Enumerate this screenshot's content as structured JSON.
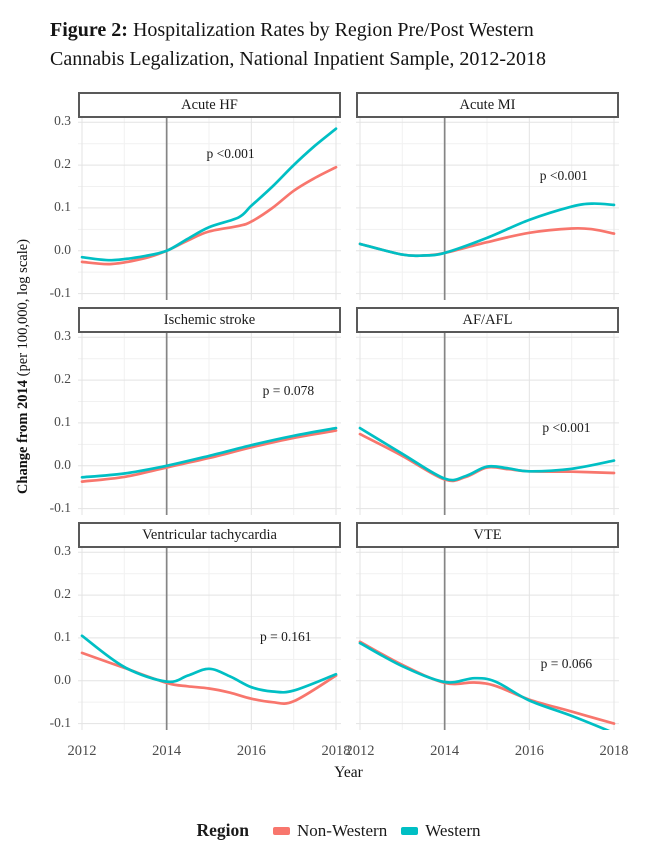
{
  "header": {
    "figure_label": "Figure 2:",
    "title_line1": "Hospitalization Rates by Region Pre/Post Western",
    "title_line2": "Cannabis Legalization, National Inpatient Sample, 2012-2018"
  },
  "chart_data": {
    "type": "line",
    "title": "Figure 2: Hospitalization Rates by Region Pre/Post Western Cannabis Legalization, National Inpatient Sample, 2012-2018",
    "xlabel": "Year",
    "ylabel_bold": "Change from 2014",
    "ylabel_rest": " (per 100,000, log scale)",
    "x_tick_labels": [
      "2012",
      "2014",
      "2016",
      "2018"
    ],
    "x_tick_values": [
      2012,
      2014,
      2016,
      2018
    ],
    "x_minor_values": [
      2013,
      2015,
      2017
    ],
    "y_tick_labels": [
      "0.3",
      "0.2",
      "0.1",
      "0.0",
      "-0.1"
    ],
    "y_tick_values": [
      0.3,
      0.2,
      0.1,
      0.0,
      -0.1
    ],
    "y_minor_values": [
      0.25,
      0.15,
      0.05,
      -0.05
    ],
    "xlim": [
      2011.9,
      2018.12
    ],
    "ylim": [
      -0.115,
      0.31
    ],
    "grid": true,
    "reference_line_x": 2014,
    "colors": {
      "non_western": "#F8766D",
      "western": "#00BFC4",
      "reference_line": "#858585",
      "grid_major": "#e3e3e3",
      "grid_minor": "#f1f1f1",
      "strip_border": "#595959"
    },
    "legend": {
      "title": "Region",
      "position": "bottom",
      "entries": [
        {
          "label": "Non-Western",
          "color": "#F8766D",
          "series_key": "non_western"
        },
        {
          "label": "Western",
          "color": "#00BFC4",
          "series_key": "western"
        }
      ]
    },
    "panels": [
      {
        "title": "Acute HF",
        "p_label": "p <0.001",
        "p_x": 0.58,
        "p_y": 0.2,
        "x": [
          2012,
          2012.7,
          2013.5,
          2014,
          2014.5,
          2015,
          2015.7,
          2016,
          2016.5,
          2017,
          2017.5,
          2018
        ],
        "western": [
          -0.015,
          -0.022,
          -0.012,
          0.0,
          0.028,
          0.055,
          0.078,
          0.105,
          0.15,
          0.2,
          0.245,
          0.285
        ],
        "non_western": [
          -0.026,
          -0.031,
          -0.017,
          0.0,
          0.024,
          0.045,
          0.058,
          0.068,
          0.1,
          0.14,
          0.17,
          0.195
        ]
      },
      {
        "title": "Acute MI",
        "p_label": "p <0.001",
        "p_x": 0.79,
        "p_y": 0.32,
        "x": [
          2012,
          2013,
          2013.5,
          2014,
          2015,
          2016,
          2017,
          2017.5,
          2018
        ],
        "western": [
          0.016,
          -0.009,
          -0.011,
          -0.005,
          0.03,
          0.072,
          0.103,
          0.11,
          0.107
        ],
        "non_western": [
          0.016,
          -0.009,
          -0.011,
          -0.005,
          0.02,
          0.042,
          0.052,
          0.05,
          0.04
        ]
      },
      {
        "title": "Ischemic stroke",
        "p_label": "p = 0.078",
        "p_x": 0.8,
        "p_y": 0.32,
        "x": [
          2012,
          2013,
          2014,
          2015,
          2016,
          2017,
          2018
        ],
        "western": [
          -0.027,
          -0.018,
          0.0,
          0.023,
          0.048,
          0.07,
          0.088
        ],
        "non_western": [
          -0.037,
          -0.026,
          -0.004,
          0.018,
          0.043,
          0.065,
          0.082
        ]
      },
      {
        "title": "AF/AFL",
        "p_label": "p <0.001",
        "p_x": 0.8,
        "p_y": 0.52,
        "x": [
          2012,
          2013,
          2014,
          2014.5,
          2015,
          2015.5,
          2016,
          2017,
          2018
        ],
        "western": [
          0.088,
          0.028,
          -0.03,
          -0.024,
          -0.002,
          -0.006,
          -0.013,
          -0.007,
          0.012
        ],
        "non_western": [
          0.074,
          0.023,
          -0.032,
          -0.026,
          -0.004,
          -0.008,
          -0.013,
          -0.014,
          -0.017
        ]
      },
      {
        "title": "Ventricular tachycardia",
        "p_label": "p = 0.161",
        "p_x": 0.79,
        "p_y": 0.49,
        "x": [
          2012,
          2013,
          2014,
          2014.5,
          2015,
          2015.5,
          2016,
          2016.5,
          2017,
          2018
        ],
        "western": [
          0.105,
          0.032,
          -0.002,
          0.012,
          0.028,
          0.01,
          -0.015,
          -0.025,
          -0.023,
          0.015
        ],
        "non_western": [
          0.065,
          0.03,
          -0.005,
          -0.013,
          -0.018,
          -0.028,
          -0.042,
          -0.05,
          -0.048,
          0.012
        ]
      },
      {
        "title": "VTE",
        "p_label": "p = 0.066",
        "p_x": 0.8,
        "p_y": 0.64,
        "x": [
          2012,
          2013,
          2014,
          2014.7,
          2015.2,
          2016,
          2017,
          2018
        ],
        "western": [
          0.088,
          0.034,
          -0.003,
          0.006,
          -0.002,
          -0.046,
          -0.082,
          -0.122
        ],
        "non_western": [
          0.091,
          0.037,
          -0.005,
          -0.004,
          -0.012,
          -0.044,
          -0.072,
          -0.1
        ]
      }
    ]
  }
}
